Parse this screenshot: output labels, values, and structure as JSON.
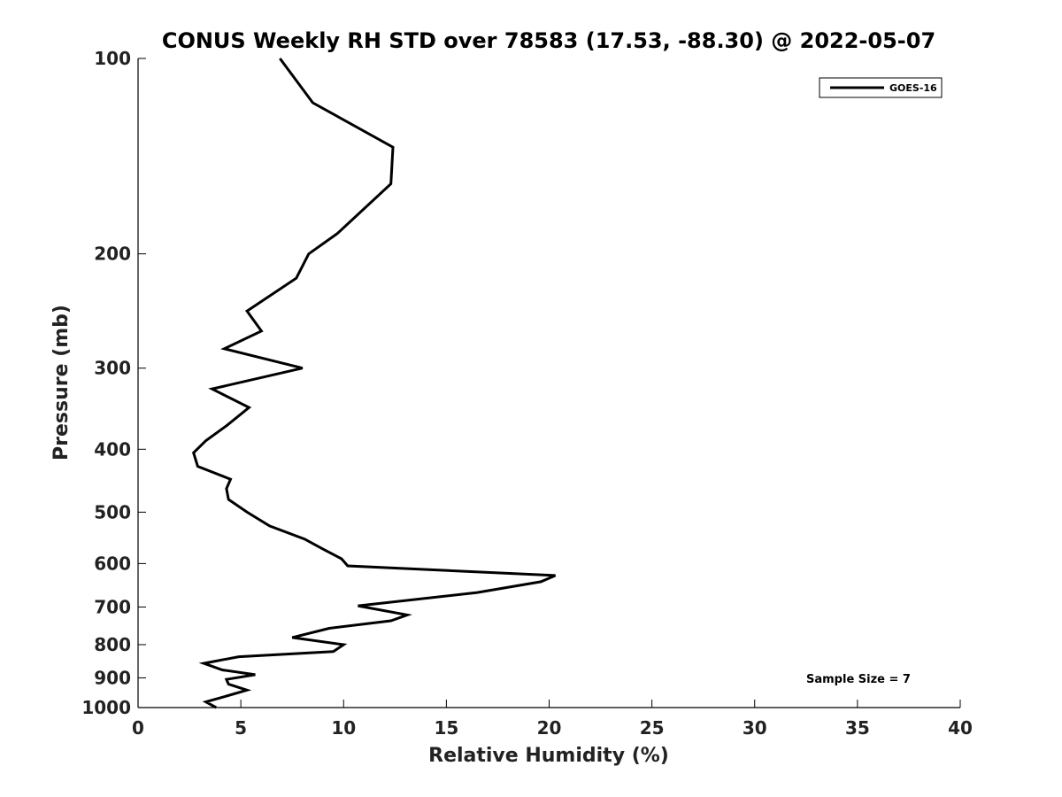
{
  "chart_data": {
    "type": "line",
    "title": "CONUS Weekly RH STD over 78583 (17.53, -88.30) @ 2022-05-07",
    "xlabel": "Relative Humidity (%)",
    "ylabel": "Pressure (mb)",
    "xlim": [
      0,
      40
    ],
    "ylim": [
      1000,
      100
    ],
    "yscale": "log",
    "xticks": [
      0,
      5,
      10,
      15,
      20,
      25,
      30,
      35,
      40
    ],
    "yticks": [
      100,
      200,
      300,
      400,
      500,
      600,
      700,
      800,
      900,
      1000
    ],
    "grid": false,
    "legend": {
      "entries": [
        "GOES-16"
      ],
      "location": "top-right"
    },
    "annotation": "Sample Size = 7",
    "series": [
      {
        "name": "GOES-16",
        "color": "#000000",
        "x": [
          6.9,
          8.5,
          12.4,
          12.3,
          9.7,
          8.3,
          7.7,
          5.3,
          6.0,
          4.2,
          8.0,
          3.6,
          5.4,
          4.3,
          3.3,
          2.7,
          2.9,
          4.5,
          4.3,
          4.4,
          5.3,
          6.4,
          8.1,
          9.0,
          9.9,
          10.2,
          20.3,
          19.6,
          16.5,
          10.7,
          13.1,
          12.3,
          9.3,
          7.5,
          10.0,
          9.5,
          4.9,
          3.2,
          4.1,
          5.7,
          4.3,
          4.4,
          5.3,
          4.3,
          3.3,
          3.8
        ],
        "pressure": [
          100,
          117,
          137,
          156,
          186,
          200,
          218,
          245,
          263,
          280,
          300,
          323,
          345,
          368,
          388,
          405,
          425,
          445,
          460,
          478,
          500,
          525,
          550,
          570,
          590,
          605,
          626,
          640,
          665,
          697,
          720,
          735,
          755,
          780,
          800,
          820,
          835,
          855,
          875,
          890,
          905,
          920,
          940,
          960,
          980,
          1000
        ]
      }
    ]
  }
}
